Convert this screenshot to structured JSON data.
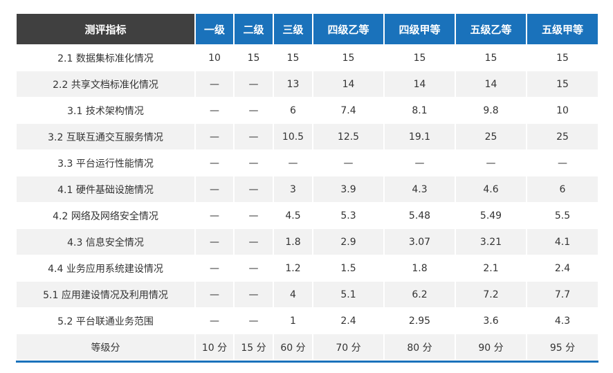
{
  "table": {
    "headers": [
      "测评指标",
      "一级",
      "二级",
      "三级",
      "四级乙等",
      "四级甲等",
      "五级乙等",
      "五级甲等"
    ],
    "rows": [
      [
        "2.1 数据集标准化情况",
        "10",
        "15",
        "15",
        "15",
        "15",
        "15",
        "15"
      ],
      [
        "2.2 共享文档标准化情况",
        "—",
        "—",
        "13",
        "14",
        "14",
        "14",
        "15"
      ],
      [
        "3.1 技术架构情况",
        "—",
        "—",
        "6",
        "7.4",
        "8.1",
        "9.8",
        "10"
      ],
      [
        "3.2 互联互通交互服务情况",
        "—",
        "—",
        "10.5",
        "12.5",
        "19.1",
        "25",
        "25"
      ],
      [
        "3.3 平台运行性能情况",
        "—",
        "—",
        "—",
        "—",
        "—",
        "—",
        "—"
      ],
      [
        "4.1 硬件基础设施情况",
        "—",
        "—",
        "3",
        "3.9",
        "4.3",
        "4.6",
        "6"
      ],
      [
        "4.2 网络及网络安全情况",
        "—",
        "—",
        "4.5",
        "5.3",
        "5.48",
        "5.49",
        "5.5"
      ],
      [
        "4.3 信息安全情况",
        "—",
        "—",
        "1.8",
        "2.9",
        "3.07",
        "3.21",
        "4.1"
      ],
      [
        "4.4 业务应用系统建设情况",
        "—",
        "—",
        "1.2",
        "1.5",
        "1.8",
        "2.1",
        "2.4"
      ],
      [
        "5.1 应用建设情况及利用情况",
        "—",
        "—",
        "4",
        "5.1",
        "6.2",
        "7.2",
        "7.7"
      ],
      [
        "5.2 平台联通业务范围",
        "—",
        "—",
        "1",
        "2.4",
        "2.95",
        "3.6",
        "4.3"
      ],
      [
        "等级分",
        "10 分",
        "15 分",
        "60 分",
        "70 分",
        "80 分",
        "90 分",
        "95 分"
      ]
    ]
  },
  "colors": {
    "header_blue": "#1a72bb",
    "header_dark": "#404040",
    "row_alt": "#f2f2f2"
  }
}
